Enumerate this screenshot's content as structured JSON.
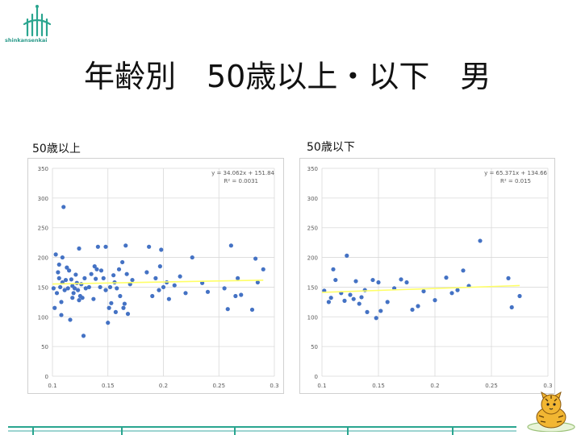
{
  "header": {
    "logo_text": "shinkansenkai",
    "title": "年齢別　50歳以上・以下　男"
  },
  "charts": [
    {
      "label": "50歳以上"
    },
    {
      "label": "50歳以下"
    }
  ],
  "colors": {
    "points": "#4472c4",
    "trendline": "#ffff66",
    "grid": "#d9d9d9",
    "logo": "#2aa58f"
  },
  "icons": [
    "logo-icon",
    "tiger-cat-icon"
  ],
  "chart_data": [
    {
      "type": "scatter",
      "title": "",
      "xlim": [
        0.1,
        0.3
      ],
      "ylim": [
        0,
        350
      ],
      "xticks": [
        "0.1",
        "0.15",
        "0.2",
        "0.25",
        "0.3"
      ],
      "yticks": [
        "0",
        "50",
        "100",
        "150",
        "200",
        "250",
        "300",
        "350"
      ],
      "grid": true,
      "equation": "y = 34.062x + 151.84",
      "r2": "R² = 0.0031",
      "trendline": {
        "slope": 34.062,
        "intercept": 151.84,
        "x_range": [
          0.1,
          0.29
        ]
      },
      "points": [
        [
          0.101,
          148
        ],
        [
          0.102,
          115
        ],
        [
          0.103,
          205
        ],
        [
          0.104,
          140
        ],
        [
          0.105,
          175
        ],
        [
          0.106,
          188
        ],
        [
          0.106,
          165
        ],
        [
          0.107,
          150
        ],
        [
          0.108,
          103
        ],
        [
          0.108,
          125
        ],
        [
          0.109,
          158
        ],
        [
          0.109,
          200
        ],
        [
          0.11,
          285
        ],
        [
          0.111,
          145
        ],
        [
          0.112,
          162
        ],
        [
          0.113,
          183
        ],
        [
          0.114,
          148
        ],
        [
          0.115,
          178
        ],
        [
          0.116,
          95
        ],
        [
          0.117,
          163
        ],
        [
          0.118,
          132
        ],
        [
          0.118,
          152
        ],
        [
          0.119,
          140
        ],
        [
          0.12,
          148
        ],
        [
          0.121,
          171
        ],
        [
          0.122,
          157
        ],
        [
          0.123,
          145
        ],
        [
          0.124,
          128
        ],
        [
          0.124,
          215
        ],
        [
          0.125,
          135
        ],
        [
          0.126,
          155
        ],
        [
          0.127,
          132
        ],
        [
          0.128,
          68
        ],
        [
          0.129,
          165
        ],
        [
          0.13,
          148
        ],
        [
          0.133,
          150
        ],
        [
          0.135,
          172
        ],
        [
          0.137,
          130
        ],
        [
          0.138,
          185
        ],
        [
          0.139,
          164
        ],
        [
          0.14,
          180
        ],
        [
          0.141,
          218
        ],
        [
          0.143,
          150
        ],
        [
          0.144,
          178
        ],
        [
          0.146,
          165
        ],
        [
          0.148,
          145
        ],
        [
          0.148,
          218
        ],
        [
          0.15,
          90
        ],
        [
          0.151,
          115
        ],
        [
          0.152,
          150
        ],
        [
          0.153,
          123
        ],
        [
          0.155,
          170
        ],
        [
          0.156,
          158
        ],
        [
          0.157,
          108
        ],
        [
          0.158,
          148
        ],
        [
          0.16,
          180
        ],
        [
          0.161,
          135
        ],
        [
          0.163,
          192
        ],
        [
          0.164,
          115
        ],
        [
          0.165,
          122
        ],
        [
          0.166,
          220
        ],
        [
          0.167,
          172
        ],
        [
          0.168,
          105
        ],
        [
          0.17,
          155
        ],
        [
          0.172,
          162
        ],
        [
          0.185,
          175
        ],
        [
          0.187,
          218
        ],
        [
          0.19,
          135
        ],
        [
          0.193,
          165
        ],
        [
          0.196,
          145
        ],
        [
          0.197,
          185
        ],
        [
          0.198,
          213
        ],
        [
          0.2,
          150
        ],
        [
          0.203,
          158
        ],
        [
          0.205,
          130
        ],
        [
          0.21,
          153
        ],
        [
          0.215,
          168
        ],
        [
          0.22,
          140
        ],
        [
          0.226,
          200
        ],
        [
          0.235,
          157
        ],
        [
          0.24,
          142
        ],
        [
          0.255,
          148
        ],
        [
          0.258,
          113
        ],
        [
          0.261,
          220
        ],
        [
          0.265,
          135
        ],
        [
          0.267,
          165
        ],
        [
          0.27,
          137
        ],
        [
          0.28,
          112
        ],
        [
          0.283,
          198
        ],
        [
          0.285,
          158
        ],
        [
          0.29,
          180
        ]
      ]
    },
    {
      "type": "scatter",
      "title": "",
      "xlim": [
        0.1,
        0.3
      ],
      "ylim": [
        0,
        350
      ],
      "xticks": [
        "0.1",
        "0.15",
        "0.2",
        "0.25",
        "0.3"
      ],
      "yticks": [
        "0",
        "50",
        "100",
        "150",
        "200",
        "250",
        "300",
        "350"
      ],
      "grid": true,
      "equation": "y = 65.371x + 134.66",
      "r2": "R² = 0.015",
      "trendline": {
        "slope": 65.371,
        "intercept": 134.66,
        "x_range": [
          0.1,
          0.275
        ]
      },
      "points": [
        [
          0.102,
          144
        ],
        [
          0.106,
          125
        ],
        [
          0.108,
          132
        ],
        [
          0.11,
          180
        ],
        [
          0.112,
          162
        ],
        [
          0.117,
          140
        ],
        [
          0.12,
          127
        ],
        [
          0.122,
          203
        ],
        [
          0.125,
          137
        ],
        [
          0.128,
          130
        ],
        [
          0.13,
          160
        ],
        [
          0.133,
          122
        ],
        [
          0.135,
          133
        ],
        [
          0.138,
          145
        ],
        [
          0.14,
          108
        ],
        [
          0.145,
          162
        ],
        [
          0.148,
          98
        ],
        [
          0.15,
          158
        ],
        [
          0.152,
          110
        ],
        [
          0.158,
          125
        ],
        [
          0.164,
          148
        ],
        [
          0.17,
          163
        ],
        [
          0.175,
          158
        ],
        [
          0.18,
          112
        ],
        [
          0.185,
          118
        ],
        [
          0.19,
          143
        ],
        [
          0.2,
          128
        ],
        [
          0.21,
          166
        ],
        [
          0.215,
          140
        ],
        [
          0.22,
          145
        ],
        [
          0.225,
          178
        ],
        [
          0.23,
          152
        ],
        [
          0.24,
          228
        ],
        [
          0.265,
          165
        ],
        [
          0.268,
          116
        ],
        [
          0.275,
          135
        ]
      ]
    }
  ]
}
